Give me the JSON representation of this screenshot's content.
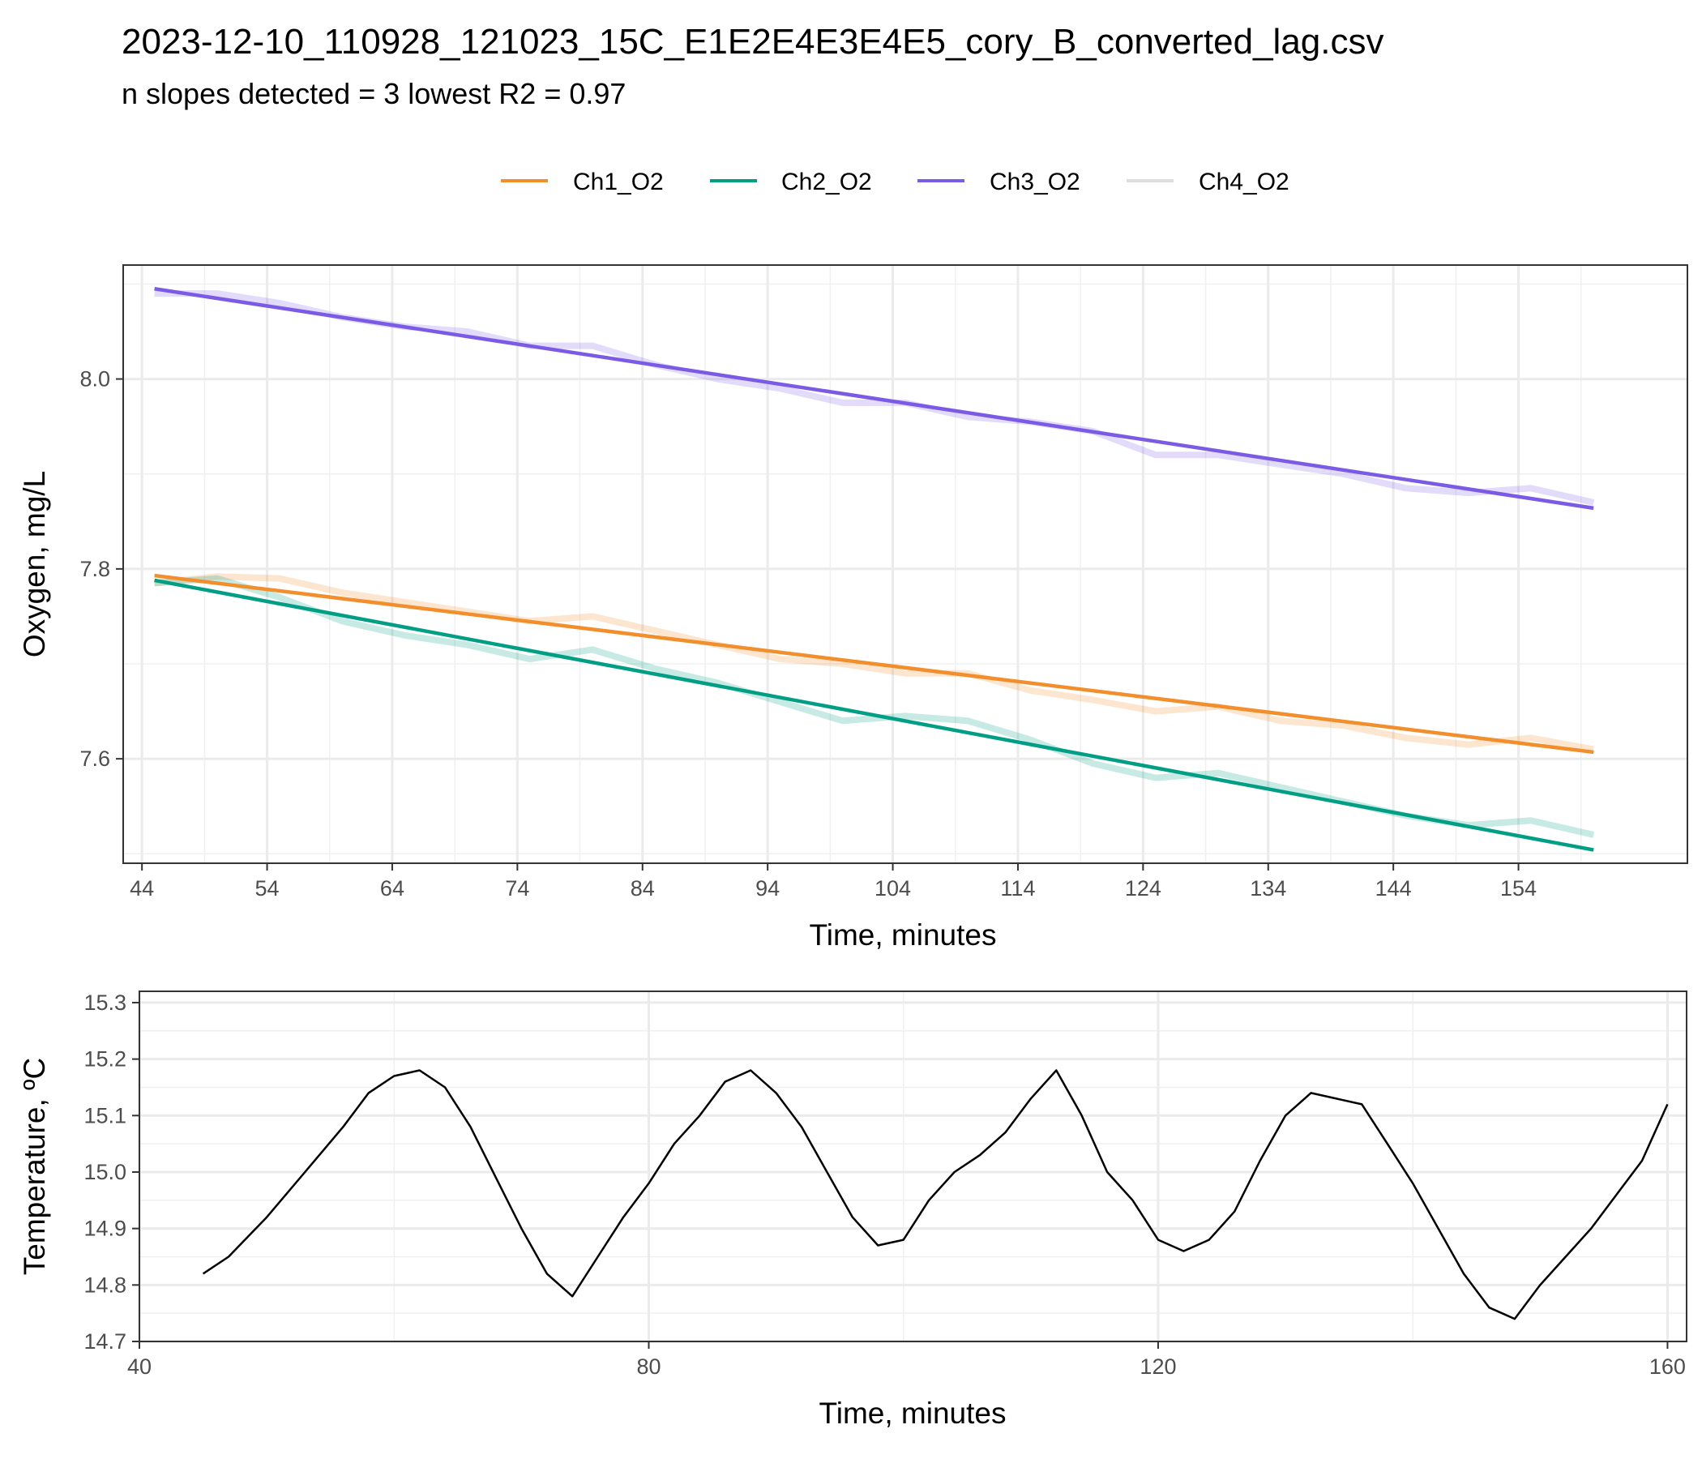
{
  "title": "2023-12-10_110928_121023_15C_E1E2E4E3E4E5_cory_B_converted_lag.csv",
  "subtitle": "n slopes detected = 3  lowest R2 = 0.97",
  "colors": {
    "Ch1_O2": "#F28E2B",
    "Ch2_O2": "#009E84",
    "Ch3_O2": "#7B5BE6",
    "Ch4_O2": "#DDDDDD",
    "temperature": "#000000"
  },
  "chart_data": [
    {
      "type": "line",
      "title": "",
      "xlabel": "Time, minutes",
      "ylabel": "Oxygen, mg/L",
      "xlim": [
        42.5,
        167.5
      ],
      "ylim": [
        7.49,
        8.12
      ],
      "xticks": [
        44,
        54,
        64,
        74,
        84,
        94,
        104,
        114,
        124,
        134,
        144,
        154
      ],
      "yticks": [
        7.6,
        7.8,
        8.0
      ],
      "legend": [
        "Ch1_O2",
        "Ch2_O2",
        "Ch3_O2",
        "Ch4_O2"
      ],
      "legend_position": "top",
      "fits": [
        {
          "name": "Ch1_O2",
          "x": [
            45,
            160
          ],
          "y": [
            7.793,
            7.607
          ]
        },
        {
          "name": "Ch2_O2",
          "x": [
            45,
            160
          ],
          "y": [
            7.788,
            7.504
          ]
        },
        {
          "name": "Ch3_O2",
          "x": [
            45,
            160
          ],
          "y": [
            8.095,
            7.864
          ]
        }
      ],
      "series": [
        {
          "name": "Ch1_O2",
          "x": [
            45,
            50,
            55,
            60,
            65,
            70,
            75,
            80,
            85,
            90,
            95,
            100,
            105,
            110,
            115,
            120,
            125,
            130,
            135,
            140,
            145,
            150,
            155,
            160
          ],
          "values": [
            7.785,
            7.792,
            7.79,
            7.775,
            7.765,
            7.755,
            7.745,
            7.75,
            7.735,
            7.72,
            7.705,
            7.7,
            7.69,
            7.69,
            7.672,
            7.662,
            7.65,
            7.655,
            7.64,
            7.635,
            7.622,
            7.615,
            7.622,
            7.61
          ]
        },
        {
          "name": "Ch2_O2",
          "x": [
            45,
            50,
            55,
            60,
            65,
            70,
            75,
            80,
            85,
            90,
            95,
            100,
            105,
            110,
            115,
            120,
            125,
            130,
            135,
            140,
            145,
            150,
            155,
            160
          ],
          "values": [
            7.785,
            7.79,
            7.77,
            7.745,
            7.73,
            7.72,
            7.705,
            7.715,
            7.695,
            7.68,
            7.66,
            7.64,
            7.645,
            7.64,
            7.62,
            7.595,
            7.58,
            7.585,
            7.57,
            7.555,
            7.54,
            7.53,
            7.535,
            7.52
          ]
        },
        {
          "name": "Ch3_O2",
          "x": [
            45,
            50,
            55,
            60,
            65,
            70,
            75,
            80,
            85,
            90,
            95,
            100,
            105,
            110,
            115,
            120,
            125,
            130,
            135,
            140,
            145,
            150,
            155,
            160
          ],
          "values": [
            8.09,
            8.09,
            8.08,
            8.065,
            8.055,
            8.05,
            8.035,
            8.035,
            8.015,
            8.0,
            7.99,
            7.975,
            7.975,
            7.96,
            7.955,
            7.945,
            7.92,
            7.92,
            7.91,
            7.9,
            7.885,
            7.88,
            7.885,
            7.87
          ]
        },
        {
          "name": "Ch4_O2",
          "x": [],
          "values": []
        }
      ]
    },
    {
      "type": "line",
      "title": "",
      "xlabel": "Time, minutes",
      "ylabel": "Temperature, ºC",
      "xlim": [
        40,
        161.5
      ],
      "ylim": [
        14.7,
        15.32
      ],
      "xticks": [
        40,
        80,
        120,
        160
      ],
      "yticks": [
        14.7,
        14.8,
        14.9,
        15.0,
        15.1,
        15.2,
        15.3
      ],
      "series": [
        {
          "name": "Temperature",
          "x": [
            45,
            47,
            50,
            53,
            56,
            58,
            60,
            62,
            64,
            66,
            68,
            70,
            72,
            74,
            76,
            78,
            80,
            82,
            84,
            86,
            88,
            90,
            92,
            94,
            96,
            98,
            100,
            102,
            104,
            106,
            108,
            110,
            112,
            114,
            116,
            118,
            120,
            122,
            124,
            126,
            128,
            130,
            132,
            134,
            136,
            138,
            140,
            142,
            144,
            146,
            148,
            150,
            152,
            154,
            156,
            158,
            160
          ],
          "values": [
            14.82,
            14.85,
            14.92,
            15.0,
            15.08,
            15.14,
            15.17,
            15.18,
            15.15,
            15.08,
            14.99,
            14.9,
            14.82,
            14.78,
            14.85,
            14.92,
            14.98,
            15.05,
            15.1,
            15.16,
            15.18,
            15.14,
            15.08,
            15.0,
            14.92,
            14.87,
            14.88,
            14.95,
            15.0,
            15.03,
            15.07,
            15.13,
            15.18,
            15.1,
            15.0,
            14.95,
            14.88,
            14.86,
            14.88,
            14.93,
            15.02,
            15.1,
            15.14,
            15.13,
            15.12,
            15.05,
            14.98,
            14.9,
            14.82,
            14.76,
            14.74,
            14.8,
            14.85,
            14.9,
            14.96,
            15.02,
            15.12
          ]
        }
      ]
    }
  ]
}
